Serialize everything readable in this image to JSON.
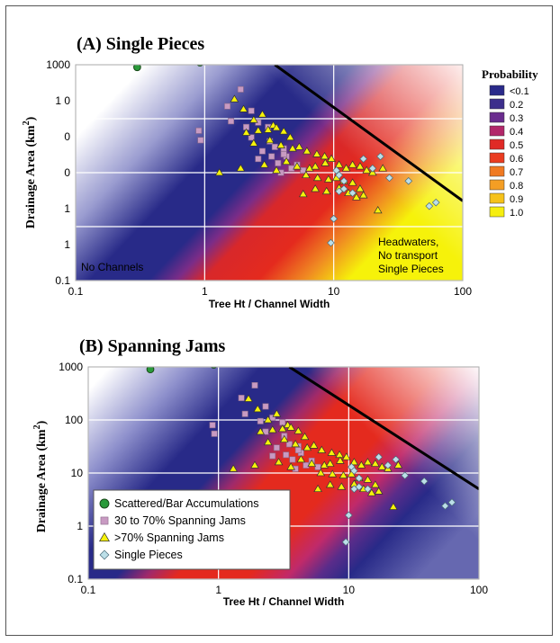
{
  "colors": {
    "blue": "#282a88",
    "red": "#e42a1e",
    "yellow": "#f6f20a",
    "scattered": "#2a9a3a",
    "spanning30": "#c89ac2",
    "spanning70": "#f6f20a",
    "single": "#bcdfe8"
  },
  "probability_legend": {
    "title": "Probability",
    "items": [
      {
        "label": "<0.1",
        "color": "#2a2a8a"
      },
      {
        "label": "0.2",
        "color": "#3c2e8c"
      },
      {
        "label": "0.3",
        "color": "#6a2c8e"
      },
      {
        "label": "0.4",
        "color": "#b2286a"
      },
      {
        "label": "0.5",
        "color": "#e02a26"
      },
      {
        "label": "0.6",
        "color": "#ea3c20"
      },
      {
        "label": "0.7",
        "color": "#f07a22"
      },
      {
        "label": "0.8",
        "color": "#f49e24"
      },
      {
        "label": "0.9",
        "color": "#f6c21a"
      },
      {
        "label": "1.0",
        "color": "#f6ee10"
      }
    ]
  },
  "data_legend": {
    "items": [
      {
        "label": "Scattered/Bar Accumulations",
        "marker": "circle",
        "series": "scattered"
      },
      {
        "label": "30 to 70% Spanning Jams",
        "marker": "square",
        "series": "spanning30"
      },
      {
        "label": ">70% Spanning Jams",
        "marker": "triangle",
        "series": "spanning70"
      },
      {
        "label": "Single Pieces",
        "marker": "diamond",
        "series": "single"
      }
    ]
  },
  "chart_data": [
    {
      "type": "scatter",
      "title": "(A) Single Pieces",
      "xlabel": "Tree Ht / Channel Width",
      "ylabel": "Drainage Area",
      "ylabel_unit": "km",
      "ylabel_exp": "2",
      "xscale": "log",
      "yscale": "log",
      "xlim": [
        0.1,
        100
      ],
      "ylim": [
        0.1,
        1000
      ],
      "xticklabels": [
        "0.1",
        "1",
        "10",
        "100"
      ],
      "yticklabels": [
        "1000",
        "1 0",
        "0",
        "0",
        "1",
        "1",
        "0.1"
      ],
      "grid": true,
      "threshold_line": {
        "x": [
          3.5,
          100
        ],
        "y": [
          1000,
          3
        ]
      },
      "annotations": [
        {
          "text": "No Channels",
          "color": "#000000"
        },
        {
          "text": "Headwaters,",
          "color": "#000000"
        },
        {
          "text": "No transport",
          "color": "#000000"
        },
        {
          "text": "Single Pieces",
          "color": "#000000"
        }
      ],
      "series": [
        {
          "key": "scattered",
          "marker": "circle",
          "x": [
            0.3,
            0.92
          ],
          "y": [
            900,
            1100
          ]
        },
        {
          "key": "spanning30",
          "marker": "square",
          "x": [
            0.9,
            0.93,
            1.5,
            1.9,
            1.6,
            2.1,
            2.3,
            2.6,
            3.1,
            2.3,
            3.2,
            2.8,
            3.5,
            4.1,
            3.3,
            4.3,
            4.7,
            5.2,
            5.8,
            2.6,
            3.7,
            4.1,
            3.9
          ],
          "y": [
            60,
            40,
            170,
            350,
            90,
            70,
            140,
            85,
            70,
            45,
            38,
            25,
            30,
            28,
            20,
            20,
            12,
            14,
            11,
            18,
            15,
            22,
            10
          ]
        },
        {
          "key": "spanning70",
          "marker": "triangle",
          "x": [
            1.7,
            2.0,
            2.4,
            2.8,
            3.4,
            2.1,
            2.6,
            3.1,
            3.6,
            4.1,
            4.6,
            2.4,
            3.2,
            3.9,
            4.8,
            5.4,
            6.2,
            7.4,
            8.5,
            9.6,
            1.3,
            1.9,
            2.9,
            3.6,
            4.3,
            5.2,
            6.5,
            7.2,
            8.6,
            11,
            12.5,
            14,
            16,
            18,
            20,
            24,
            6.1,
            7.5,
            9.1,
            10.5,
            12,
            14,
            16,
            5.8,
            7.2,
            8.8,
            11,
            13,
            15,
            17,
            22
          ],
          "y": [
            230,
            150,
            95,
            120,
            75,
            55,
            60,
            62,
            68,
            58,
            45,
            35,
            40,
            32,
            28,
            30,
            25,
            22,
            20,
            18,
            10,
            12,
            14,
            11,
            16,
            13,
            12,
            13,
            15,
            14,
            12,
            14,
            13,
            11,
            10,
            12,
            9,
            8,
            7.5,
            8,
            7,
            6.5,
            5,
            4,
            5,
            4.5,
            5.2,
            4.2,
            3.5,
            3.8,
            2
          ]
        },
        {
          "key": "single",
          "marker": "diamond",
          "x": [
            10.5,
            11,
            12,
            14,
            17,
            20,
            23,
            27,
            38,
            55,
            62,
            12,
            11,
            9.5,
            10
          ],
          "y": [
            11,
            9,
            7,
            4.2,
            18,
            12,
            20,
            8,
            7,
            2.4,
            2.8,
            5,
            4.5,
            0.5,
            1.4
          ]
        }
      ]
    },
    {
      "type": "scatter",
      "title": "(B) Spanning Jams",
      "xlabel": "Tree Ht / Channel Width",
      "ylabel": "Drainage Area",
      "ylabel_unit": "km",
      "ylabel_exp": "2",
      "xscale": "log",
      "yscale": "log",
      "xlim": [
        0.1,
        100
      ],
      "ylim": [
        0.1,
        1000
      ],
      "xticklabels": [
        "0.1",
        "1",
        "10",
        "100"
      ],
      "yticklabels": [
        "1000",
        "100",
        "10",
        "1",
        "0.1"
      ],
      "grid": true,
      "threshold_line": {
        "x": [
          3.5,
          100
        ],
        "y": [
          1000,
          5
        ]
      },
      "series": [
        {
          "key": "scattered",
          "marker": "circle",
          "x": [
            0.3,
            0.92
          ],
          "y": [
            900,
            1100
          ]
        },
        {
          "key": "spanning30",
          "marker": "square",
          "x": [
            0.9,
            0.93,
            1.5,
            1.9,
            1.6,
            2.1,
            2.3,
            2.6,
            3.1,
            2.3,
            3.2,
            2.8,
            3.5,
            4.1,
            3.3,
            4.3,
            4.7,
            5.2,
            5.8,
            2.6,
            3.7,
            4.1,
            3.9
          ],
          "y": [
            80,
            55,
            260,
            450,
            130,
            95,
            180,
            110,
            90,
            60,
            50,
            30,
            35,
            32,
            22,
            24,
            14,
            17,
            13,
            21,
            18,
            27,
            12
          ]
        },
        {
          "key": "spanning70",
          "marker": "triangle",
          "x": [
            1.7,
            2.0,
            2.4,
            2.8,
            3.4,
            2.1,
            2.6,
            3.1,
            3.6,
            4.1,
            4.6,
            2.4,
            3.2,
            3.9,
            4.8,
            5.4,
            6.2,
            7.4,
            8.5,
            9.6,
            1.3,
            1.9,
            2.9,
            3.6,
            4.3,
            5.2,
            6.5,
            7.2,
            8.6,
            11,
            12.5,
            14,
            16,
            18,
            20,
            24,
            6.1,
            7.5,
            9.1,
            10.5,
            12,
            14,
            16,
            5.8,
            7.2,
            8.8,
            11,
            13,
            15,
            17,
            22
          ],
          "y": [
            250,
            160,
            100,
            130,
            80,
            60,
            65,
            68,
            72,
            62,
            48,
            38,
            43,
            35,
            30,
            33,
            27,
            24,
            22,
            20,
            12,
            14,
            16,
            13,
            18,
            15,
            14,
            15,
            17,
            16,
            14,
            16,
            15,
            13,
            12,
            14,
            10,
            9.5,
            9,
            9.5,
            8,
            7.5,
            6,
            5,
            6,
            5.5,
            6.2,
            5,
            4.2,
            4.5,
            2.3
          ]
        },
        {
          "key": "single",
          "marker": "diamond",
          "x": [
            10.5,
            11,
            12,
            14,
            17,
            20,
            23,
            27,
            38,
            55,
            62,
            12,
            11,
            9.5,
            10
          ],
          "y": [
            13,
            11,
            8,
            5,
            20,
            14,
            18,
            9,
            7,
            2.4,
            2.8,
            5.5,
            5,
            0.5,
            1.6
          ]
        }
      ]
    }
  ]
}
